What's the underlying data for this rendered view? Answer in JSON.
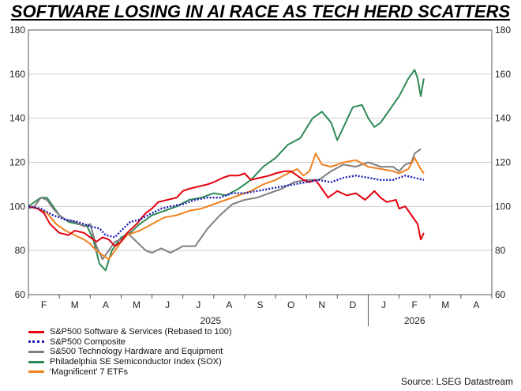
{
  "chart_data": {
    "type": "line",
    "title": "SOFTWARE LOSING IN AI RACE AS TECH HERD SCATTERS",
    "source": "Source: LSEG Datastream",
    "ylim": [
      60,
      180
    ],
    "yticks": [
      60,
      80,
      100,
      120,
      140,
      160,
      180
    ],
    "xlim": [
      0,
      15
    ],
    "month_ticks": [
      "F",
      "M",
      "A",
      "M",
      "J",
      "J",
      "A",
      "S",
      "O",
      "N",
      "D",
      "J",
      "F",
      "M",
      "A"
    ],
    "year_labels": [
      {
        "label": "2025",
        "x": 5.9
      },
      {
        "label": "2026",
        "x": 12.5
      }
    ],
    "grid": true,
    "legend_position": "bottom-left",
    "series": [
      {
        "name": "S&P500 Software & Services (Rebased to 100)",
        "color": "#e3000f",
        "style": "solid",
        "points": [
          [
            0,
            100
          ],
          [
            0.3,
            99
          ],
          [
            0.5,
            97
          ],
          [
            0.7,
            92
          ],
          [
            1.0,
            88
          ],
          [
            1.3,
            87
          ],
          [
            1.5,
            89
          ],
          [
            1.8,
            88
          ],
          [
            2.0,
            86
          ],
          [
            2.2,
            84
          ],
          [
            2.4,
            86
          ],
          [
            2.6,
            85
          ],
          [
            2.8,
            82
          ],
          [
            3.0,
            84
          ],
          [
            3.2,
            88
          ],
          [
            3.5,
            92
          ],
          [
            3.8,
            97
          ],
          [
            4.0,
            99
          ],
          [
            4.2,
            102
          ],
          [
            4.5,
            103
          ],
          [
            4.8,
            104
          ],
          [
            5.0,
            107
          ],
          [
            5.2,
            108
          ],
          [
            5.5,
            109
          ],
          [
            5.8,
            110
          ],
          [
            6.0,
            111
          ],
          [
            6.3,
            113
          ],
          [
            6.5,
            114
          ],
          [
            6.8,
            114
          ],
          [
            7.0,
            115
          ],
          [
            7.2,
            112
          ],
          [
            7.5,
            113
          ],
          [
            7.8,
            114
          ],
          [
            8.0,
            115
          ],
          [
            8.3,
            116
          ],
          [
            8.5,
            116
          ],
          [
            8.7,
            114
          ],
          [
            8.9,
            112
          ],
          [
            9.1,
            111
          ],
          [
            9.3,
            112
          ],
          [
            9.5,
            108
          ],
          [
            9.7,
            104
          ],
          [
            10.0,
            107
          ],
          [
            10.3,
            105
          ],
          [
            10.6,
            106
          ],
          [
            10.9,
            103
          ],
          [
            11.2,
            107
          ],
          [
            11.4,
            104
          ],
          [
            11.6,
            102
          ],
          [
            11.9,
            103
          ],
          [
            12.0,
            99
          ],
          [
            12.2,
            100
          ],
          [
            12.4,
            96
          ],
          [
            12.6,
            92
          ],
          [
            12.7,
            85
          ],
          [
            12.8,
            88
          ]
        ]
      },
      {
        "name": "S&P500 Composite",
        "color": "#1a1ab8",
        "style": "dotted",
        "points": [
          [
            0,
            100
          ],
          [
            0.4,
            99
          ],
          [
            0.8,
            96
          ],
          [
            1.2,
            94
          ],
          [
            1.6,
            93
          ],
          [
            2.0,
            91
          ],
          [
            2.3,
            90
          ],
          [
            2.5,
            87
          ],
          [
            2.8,
            86
          ],
          [
            3.0,
            89
          ],
          [
            3.3,
            93
          ],
          [
            3.6,
            94
          ],
          [
            4.0,
            97
          ],
          [
            4.3,
            99
          ],
          [
            4.6,
            100
          ],
          [
            5.0,
            101
          ],
          [
            5.4,
            103
          ],
          [
            5.8,
            104
          ],
          [
            6.2,
            104
          ],
          [
            6.6,
            106
          ],
          [
            7.0,
            106
          ],
          [
            7.4,
            107
          ],
          [
            7.8,
            108
          ],
          [
            8.2,
            109
          ],
          [
            8.6,
            110
          ],
          [
            9.0,
            111
          ],
          [
            9.4,
            112
          ],
          [
            9.8,
            111
          ],
          [
            10.2,
            113
          ],
          [
            10.6,
            114
          ],
          [
            11.0,
            113
          ],
          [
            11.4,
            112
          ],
          [
            11.8,
            112
          ],
          [
            12.2,
            114
          ],
          [
            12.5,
            113
          ],
          [
            12.8,
            112
          ]
        ]
      },
      {
        "name": "S&500 Technology Hardware and Equipment",
        "color": "#7f7f7f",
        "style": "solid",
        "points": [
          [
            0,
            99
          ],
          [
            0.2,
            100
          ],
          [
            0.4,
            104
          ],
          [
            0.6,
            103
          ],
          [
            0.8,
            99
          ],
          [
            1.0,
            96
          ],
          [
            1.2,
            94
          ],
          [
            1.5,
            93
          ],
          [
            1.8,
            91
          ],
          [
            2.0,
            92
          ],
          [
            2.2,
            82
          ],
          [
            2.4,
            76
          ],
          [
            2.6,
            80
          ],
          [
            2.8,
            84
          ],
          [
            3.0,
            85
          ],
          [
            3.2,
            88
          ],
          [
            3.5,
            84
          ],
          [
            3.8,
            80
          ],
          [
            4.0,
            79
          ],
          [
            4.3,
            81
          ],
          [
            4.6,
            79
          ],
          [
            5.0,
            82
          ],
          [
            5.4,
            82
          ],
          [
            5.8,
            90
          ],
          [
            6.2,
            96
          ],
          [
            6.6,
            101
          ],
          [
            7.0,
            103
          ],
          [
            7.4,
            104
          ],
          [
            7.8,
            106
          ],
          [
            8.2,
            108
          ],
          [
            8.6,
            111
          ],
          [
            9.0,
            112
          ],
          [
            9.4,
            112
          ],
          [
            9.8,
            116
          ],
          [
            10.2,
            119
          ],
          [
            10.6,
            118
          ],
          [
            11.0,
            120
          ],
          [
            11.4,
            118
          ],
          [
            11.8,
            118
          ],
          [
            12.0,
            116
          ],
          [
            12.2,
            119
          ],
          [
            12.4,
            120
          ],
          [
            12.5,
            124
          ],
          [
            12.7,
            126
          ]
        ]
      },
      {
        "name": "Philadelphia SE Semiconductor Index (SOX)",
        "color": "#2e8b57",
        "style": "solid",
        "points": [
          [
            0,
            100
          ],
          [
            0.2,
            102
          ],
          [
            0.4,
            104
          ],
          [
            0.6,
            104
          ],
          [
            0.8,
            100
          ],
          [
            1.0,
            96
          ],
          [
            1.3,
            93
          ],
          [
            1.6,
            92
          ],
          [
            1.9,
            91
          ],
          [
            2.1,
            85
          ],
          [
            2.3,
            74
          ],
          [
            2.5,
            71
          ],
          [
            2.7,
            80
          ],
          [
            3.0,
            86
          ],
          [
            3.3,
            88
          ],
          [
            3.6,
            92
          ],
          [
            4.0,
            96
          ],
          [
            4.4,
            98
          ],
          [
            4.8,
            100
          ],
          [
            5.2,
            103
          ],
          [
            5.6,
            104
          ],
          [
            6.0,
            106
          ],
          [
            6.4,
            105
          ],
          [
            6.8,
            108
          ],
          [
            7.2,
            112
          ],
          [
            7.6,
            118
          ],
          [
            8.0,
            122
          ],
          [
            8.4,
            128
          ],
          [
            8.8,
            131
          ],
          [
            9.2,
            140
          ],
          [
            9.5,
            143
          ],
          [
            9.8,
            138
          ],
          [
            10.0,
            130
          ],
          [
            10.2,
            136
          ],
          [
            10.5,
            145
          ],
          [
            10.8,
            146
          ],
          [
            11.0,
            140
          ],
          [
            11.2,
            136
          ],
          [
            11.4,
            138
          ],
          [
            11.7,
            144
          ],
          [
            12.0,
            150
          ],
          [
            12.3,
            158
          ],
          [
            12.5,
            162
          ],
          [
            12.6,
            158
          ],
          [
            12.7,
            150
          ],
          [
            12.8,
            158
          ]
        ]
      },
      {
        "name": "'Magnificent' 7 ETFs",
        "color": "#f0821e",
        "style": "solid",
        "points": [
          [
            0,
            100
          ],
          [
            0.3,
            99
          ],
          [
            0.6,
            97
          ],
          [
            0.9,
            92
          ],
          [
            1.2,
            89
          ],
          [
            1.5,
            87
          ],
          [
            1.8,
            85
          ],
          [
            2.0,
            83
          ],
          [
            2.2,
            80
          ],
          [
            2.4,
            78
          ],
          [
            2.6,
            76
          ],
          [
            2.8,
            80
          ],
          [
            3.0,
            84
          ],
          [
            3.2,
            87
          ],
          [
            3.6,
            89
          ],
          [
            4.0,
            92
          ],
          [
            4.4,
            95
          ],
          [
            4.8,
            96
          ],
          [
            5.2,
            98
          ],
          [
            5.6,
            99
          ],
          [
            6.0,
            101
          ],
          [
            6.4,
            103
          ],
          [
            6.8,
            105
          ],
          [
            7.2,
            107
          ],
          [
            7.6,
            110
          ],
          [
            8.0,
            112
          ],
          [
            8.4,
            115
          ],
          [
            8.7,
            117
          ],
          [
            8.9,
            114
          ],
          [
            9.1,
            116
          ],
          [
            9.3,
            124
          ],
          [
            9.5,
            119
          ],
          [
            9.8,
            118
          ],
          [
            10.2,
            120
          ],
          [
            10.6,
            121
          ],
          [
            11.0,
            118
          ],
          [
            11.4,
            117
          ],
          [
            11.8,
            116
          ],
          [
            12.0,
            115
          ],
          [
            12.3,
            117
          ],
          [
            12.5,
            122
          ],
          [
            12.7,
            117
          ],
          [
            12.8,
            115
          ]
        ]
      }
    ]
  }
}
